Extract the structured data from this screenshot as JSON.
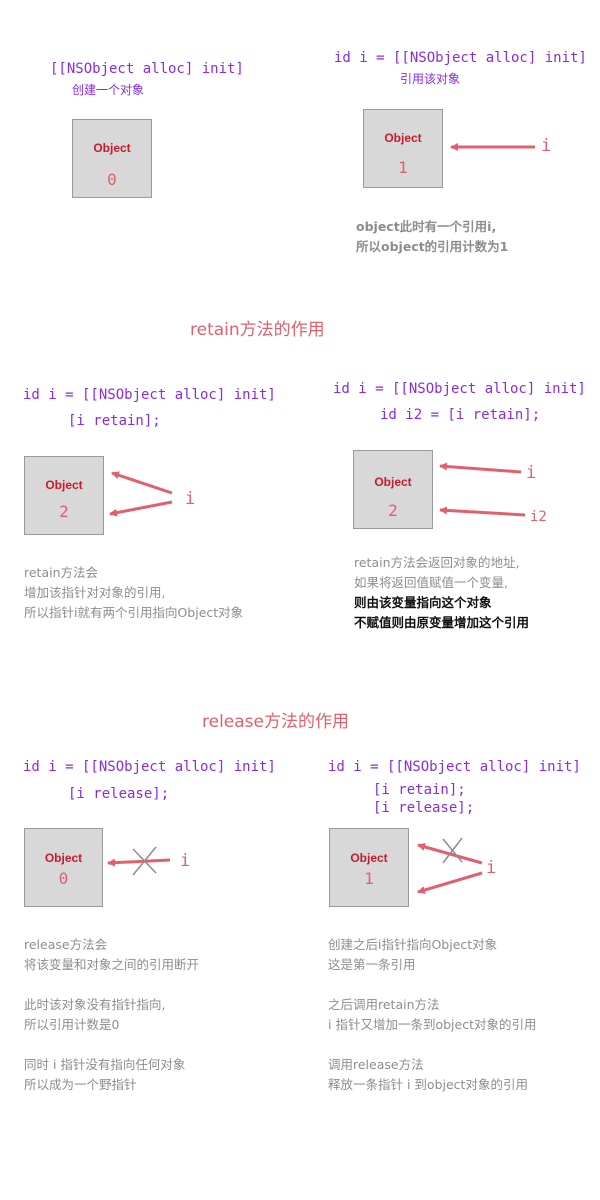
{
  "p1": {
    "code": "[[NSObject alloc] init]",
    "caption": "创建一个对象",
    "object_label": "Object",
    "count": "0"
  },
  "p2": {
    "code": "id i = [[NSObject alloc] init]",
    "caption": "引用该对象",
    "object_label": "Object",
    "count": "1",
    "ref": "i",
    "note": [
      "object此时有一个引用i,",
      "所以object的引用计数为1"
    ]
  },
  "retain_title": "retain方法的作用",
  "p3": {
    "code1": "id i = [[NSObject alloc] init]",
    "code2": "[i retain];",
    "object_label": "Object",
    "count": "2",
    "ref": "i",
    "note": [
      "retain方法会",
      "增加该指针对对象的引用,",
      "所以指针i就有两个引用指向Object对象"
    ]
  },
  "p4": {
    "code1": "id i = [[NSObject alloc] init]",
    "code2": "id i2 = [i retain];",
    "object_label": "Object",
    "count": "2",
    "ref1": "i",
    "ref2": "i2",
    "note": [
      "retain方法会返回对象的地址,",
      "如果将返回值赋值一个变量,"
    ],
    "note_bold": [
      "则由该变量指向这个对象",
      "不赋值则由原变量增加这个引用"
    ]
  },
  "release_title": "release方法的作用",
  "p5": {
    "code1": "id i = [[NSObject alloc] init]",
    "code2": "[i release];",
    "object_label": "Object",
    "count": "0",
    "ref": "i",
    "note": [
      "release方法会",
      "将该变量和对象之间的引用断开",
      "",
      "此时该对象没有指针指向,",
      "所以引用计数是0",
      "",
      "同时 i 指针没有指向任何对象",
      "所以成为一个野指针"
    ]
  },
  "p6": {
    "code1": "id i = [[NSObject alloc] init]",
    "code2": "[i retain];",
    "code3": "[i release];",
    "object_label": "Object",
    "count": "1",
    "ref": "i",
    "note": [
      "创建之后i指针指向Object对象",
      "这是第一条引用",
      "",
      "之后调用retain方法",
      "i 指针又增加一条到object对象的引用",
      "",
      "调用release方法",
      "释放一条指针 i 到object对象的引用"
    ]
  },
  "colors": {
    "code": "#8a2be2",
    "accent": "#e2606c",
    "object_text": "#c81a2a",
    "box": "#d8d8d8",
    "note": "#8d8d8d",
    "cross": "#8d8d8d"
  }
}
